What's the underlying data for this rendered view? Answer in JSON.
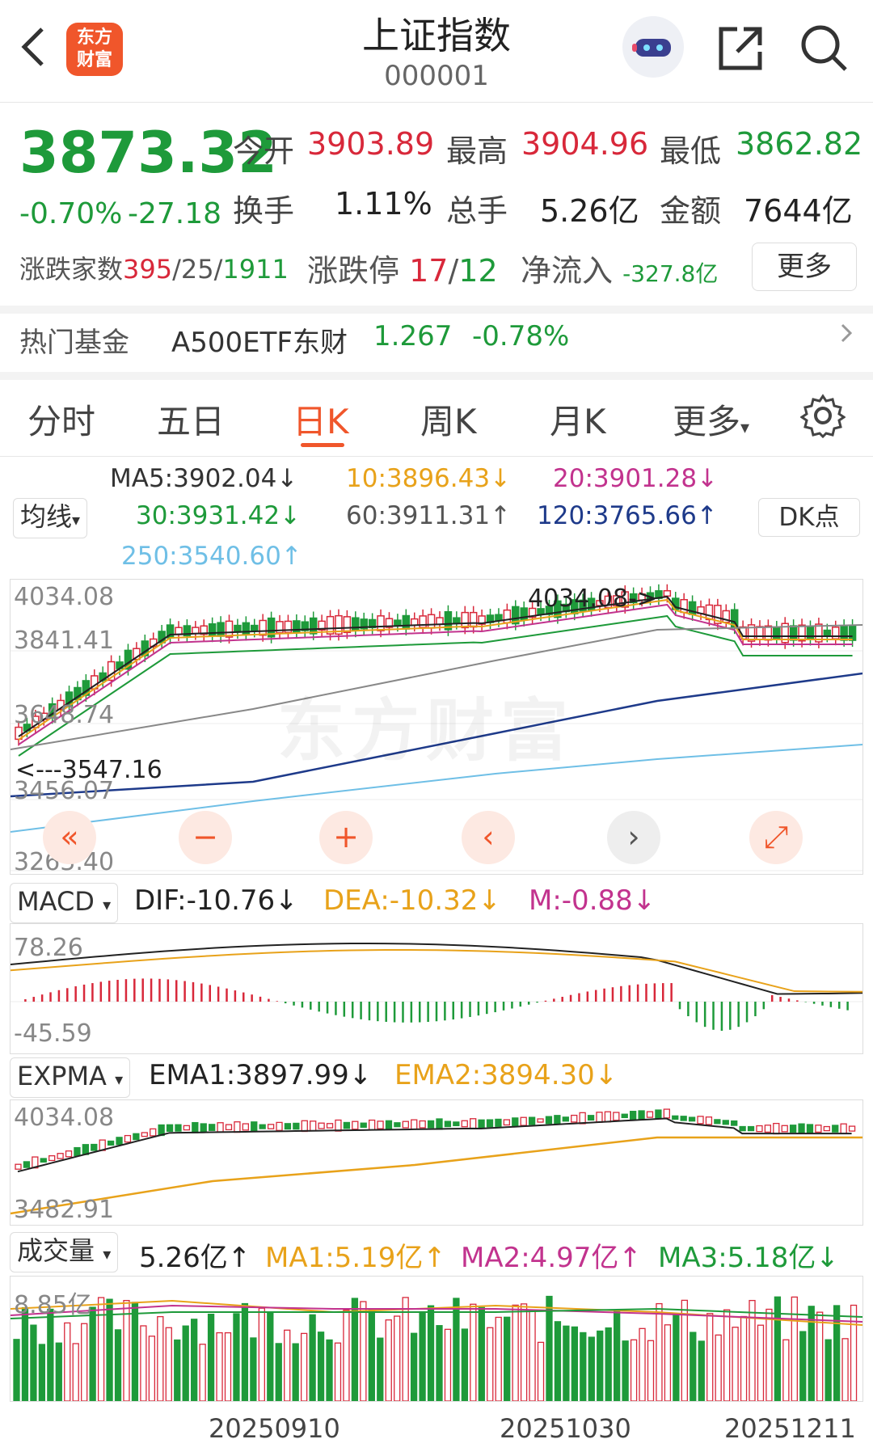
{
  "header": {
    "logo_line1": "东方",
    "logo_line2": "财富",
    "title": "上证指数",
    "code": "000001"
  },
  "quote": {
    "price": "3873.32",
    "change_pct": "-0.70%",
    "change": "-27.18",
    "open_label": "今开",
    "open": "3903.89",
    "high_label": "最高",
    "high": "3904.96",
    "low_label": "最低",
    "low": "3862.82",
    "turnover_label": "换手",
    "turnover": "1.11%",
    "volume_label": "总手",
    "volume": "5.26亿",
    "amount_label": "金额",
    "amount": "7644亿",
    "breadth_label": "涨跌家数",
    "breadth_up": "395",
    "breadth_flat": "/25/",
    "breadth_down": "1911",
    "limit_label": "涨跌停",
    "limit_up": "17",
    "limit_sep": "/",
    "limit_down": "12",
    "inflow_label": "净流入",
    "inflow": "-327.8亿",
    "more_button": "更多"
  },
  "fund": {
    "label": "热门基金",
    "name": "A500ETF东财",
    "price": "1.267",
    "change": "-0.78%"
  },
  "tabs": [
    "分时",
    "五日",
    "日K",
    "周K",
    "月K",
    "更多"
  ],
  "active_tab": "日K",
  "ma": {
    "selector": "均线",
    "ma5": "MA5:3902.04↓",
    "ma10": "10:3896.43↓",
    "ma20": "20:3901.28↓",
    "ma30": "30:3931.42↓",
    "ma60": "60:3911.31↑",
    "ma120": "120:3765.66↑",
    "ma250": "250:3540.60↑",
    "dk_button": "DK点"
  },
  "main_chart": {
    "y_labels": [
      "4034.08",
      "3841.41",
      "3648.74",
      "3456.07",
      "3263.40"
    ],
    "max_marker": "4034.08->",
    "min_marker": "<---3547.16",
    "watermark": "东方财富"
  },
  "macd": {
    "selector": "MACD",
    "dif": "DIF:-10.76↓",
    "dea": "DEA:-10.32↓",
    "m": "M:-0.88↓",
    "y_top": "78.26",
    "y_bottom": "-45.59"
  },
  "expma": {
    "selector": "EXPMA",
    "ema1": "EMA1:3897.99↓",
    "ema2": "EMA2:3894.30↓",
    "y_top": "4034.08",
    "y_bottom": "3482.91"
  },
  "volume": {
    "selector": "成交量",
    "value": "5.26亿↑",
    "ma1": "MA1:5.19亿↑",
    "ma2": "MA2:4.97亿↑",
    "ma3": "MA3:5.18亿↓",
    "y_top": "8.85亿"
  },
  "x_dates": [
    "20250910",
    "20251030",
    "20251211"
  ],
  "colors": {
    "accent": "#f0562b",
    "up": "#d8283a",
    "down": "#1e9a3a"
  }
}
